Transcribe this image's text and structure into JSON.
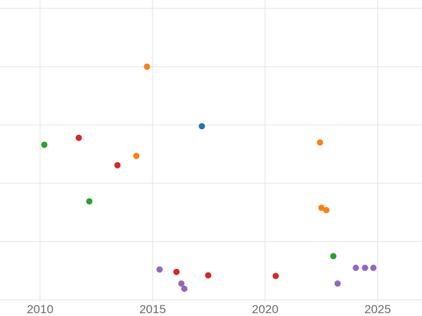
{
  "chart_data": {
    "type": "scatter",
    "title": "",
    "xlabel": "",
    "ylabel": "",
    "grid": true,
    "legend": "none",
    "xlim": [
      2008.22,
      2026.97
    ],
    "ylim": [
      0,
      5
    ],
    "x_ticks": [
      2010,
      2015,
      2020,
      2025
    ],
    "x_tick_labels": [
      "2010",
      "2015",
      "2020",
      "2025"
    ],
    "y_gridline_values": [
      0,
      1,
      2,
      3,
      4,
      5
    ],
    "point_radius": 4.5,
    "colors": {
      "background": "#ffffff",
      "grid": "#e3e3e3",
      "tick_label": "#6b6b6b",
      "blue": "#1f77b4",
      "orange": "#ff7f0e",
      "green": "#2ca02c",
      "red": "#d62728",
      "purple": "#9467bd"
    },
    "series": [
      {
        "name": "blue",
        "color": "#1f77b4",
        "points": [
          [
            2017.19,
            2.98
          ]
        ]
      },
      {
        "name": "orange",
        "color": "#ff7f0e",
        "points": [
          [
            2014.75,
            4.0
          ],
          [
            2014.28,
            2.47
          ],
          [
            2022.44,
            2.7
          ],
          [
            2022.5,
            1.58
          ],
          [
            2022.72,
            1.54
          ]
        ]
      },
      {
        "name": "green",
        "color": "#2ca02c",
        "points": [
          [
            2010.19,
            2.66
          ],
          [
            2012.19,
            1.69
          ],
          [
            2023.03,
            0.75
          ]
        ]
      },
      {
        "name": "red",
        "color": "#d62728",
        "points": [
          [
            2011.72,
            2.78
          ],
          [
            2013.44,
            2.31
          ],
          [
            2016.06,
            0.48
          ],
          [
            2017.47,
            0.42
          ],
          [
            2020.47,
            0.41
          ]
        ]
      },
      {
        "name": "purple",
        "color": "#9467bd",
        "points": [
          [
            2015.31,
            0.52
          ],
          [
            2016.28,
            0.28
          ],
          [
            2016.41,
            0.19
          ],
          [
            2023.22,
            0.28
          ],
          [
            2024.03,
            0.55
          ],
          [
            2024.44,
            0.55
          ],
          [
            2024.81,
            0.55
          ]
        ]
      }
    ]
  }
}
